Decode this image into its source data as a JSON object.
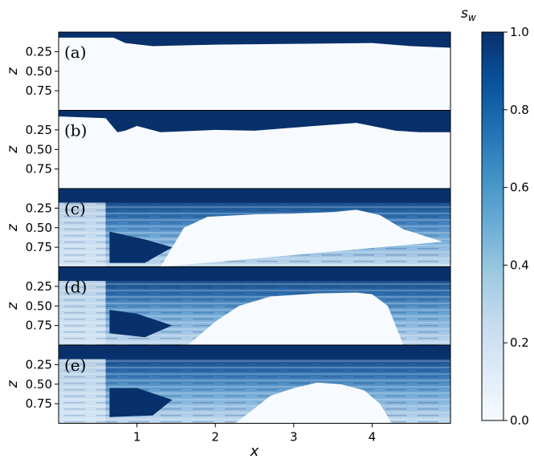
{
  "chart_data": {
    "type": "heatmap",
    "shared_x_label": "x",
    "x_ticks": [
      "1",
      "2",
      "3",
      "4"
    ],
    "x_tick_values": [
      1,
      2,
      3,
      4
    ],
    "x_range": [
      0,
      5
    ],
    "y_label": "z",
    "y_ticks": [
      "0.25",
      "0.50",
      "0.75"
    ],
    "y_tick_values": [
      0.25,
      0.5,
      0.75
    ],
    "y_range": [
      0,
      1
    ],
    "y_inverted": true,
    "colorbar": {
      "label": "s_w",
      "label_main": "s",
      "label_sub": "w",
      "ticks": [
        "0.0",
        "0.2",
        "0.4",
        "0.6",
        "0.8",
        "1.0"
      ],
      "tick_values": [
        0,
        0.2,
        0.4,
        0.6,
        0.8,
        1.0
      ],
      "range": [
        0,
        1
      ],
      "color_low": "#f7fbff",
      "color_high": "#08306b",
      "colormap": "Blues"
    },
    "panels": [
      {
        "label": "(a)",
        "top_layer_depth": [
          [
            0.05,
            0.07
          ],
          [
            0.7,
            0.07
          ],
          [
            0.85,
            0.14
          ],
          [
            1.2,
            0.18
          ],
          [
            2.0,
            0.16
          ],
          [
            3.0,
            0.15
          ],
          [
            4.0,
            0.14
          ],
          [
            4.5,
            0.18
          ],
          [
            5.0,
            0.2
          ]
        ],
        "top_layer_value": 1.0,
        "lower_value": 0.0
      },
      {
        "label": "(b)",
        "top_layer_depth": [
          [
            0.05,
            0.08
          ],
          [
            0.6,
            0.1
          ],
          [
            0.75,
            0.28
          ],
          [
            0.85,
            0.26
          ],
          [
            1.0,
            0.2
          ],
          [
            1.3,
            0.28
          ],
          [
            2.0,
            0.25
          ],
          [
            2.5,
            0.26
          ],
          [
            3.0,
            0.22
          ],
          [
            3.8,
            0.16
          ],
          [
            4.3,
            0.26
          ],
          [
            4.6,
            0.28
          ],
          [
            5.0,
            0.28
          ]
        ],
        "top_layer_value": 1.0,
        "lower_value": 0.0
      },
      {
        "label": "(c)",
        "plume_boundary": [
          [
            1.3,
            1.0
          ],
          [
            1.6,
            0.5
          ],
          [
            1.9,
            0.36
          ],
          [
            2.5,
            0.33
          ],
          [
            3.0,
            0.32
          ],
          [
            3.5,
            0.3
          ],
          [
            3.8,
            0.27
          ],
          [
            4.1,
            0.34
          ],
          [
            4.4,
            0.52
          ],
          [
            4.9,
            0.68
          ]
        ],
        "lens_depth": [
          [
            0.65,
            0.55
          ],
          [
            1.1,
            0.65
          ],
          [
            1.45,
            0.75
          ],
          [
            1.1,
            0.95
          ],
          [
            0.65,
            0.95
          ]
        ]
      },
      {
        "label": "(d)",
        "plume_boundary": [
          [
            1.65,
            1.0
          ],
          [
            2.0,
            0.7
          ],
          [
            2.3,
            0.5
          ],
          [
            2.7,
            0.38
          ],
          [
            3.3,
            0.34
          ],
          [
            3.8,
            0.33
          ],
          [
            4.0,
            0.35
          ],
          [
            4.2,
            0.5
          ],
          [
            4.3,
            0.75
          ],
          [
            4.4,
            1.0
          ]
        ],
        "lens_depth": [
          [
            0.65,
            0.55
          ],
          [
            1.0,
            0.6
          ],
          [
            1.45,
            0.75
          ],
          [
            1.1,
            0.9
          ],
          [
            0.65,
            0.85
          ]
        ]
      },
      {
        "label": "(e)",
        "plume_boundary": [
          [
            2.25,
            1.0
          ],
          [
            2.45,
            0.85
          ],
          [
            2.7,
            0.65
          ],
          [
            3.0,
            0.55
          ],
          [
            3.3,
            0.48
          ],
          [
            3.6,
            0.5
          ],
          [
            3.9,
            0.58
          ],
          [
            4.1,
            0.75
          ],
          [
            4.25,
            1.0
          ]
        ],
        "lens_depth": [
          [
            0.65,
            0.55
          ],
          [
            1.0,
            0.55
          ],
          [
            1.45,
            0.7
          ],
          [
            1.2,
            0.9
          ],
          [
            0.65,
            0.92
          ]
        ]
      }
    ]
  }
}
